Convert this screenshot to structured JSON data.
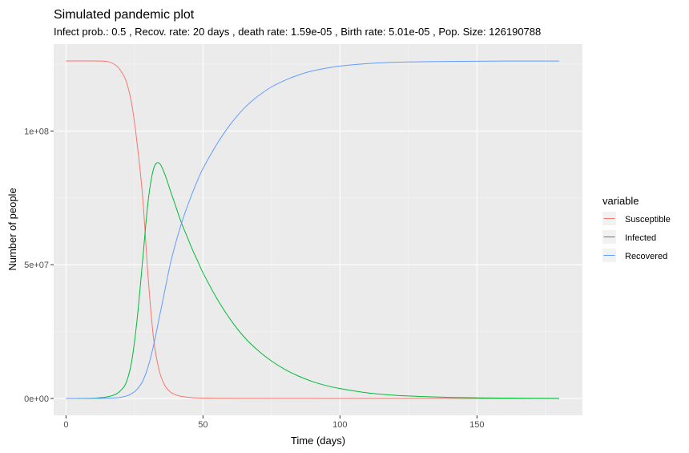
{
  "chart_data": {
    "type": "line",
    "title": "Simulated pandemic plot",
    "subtitle": "Infect prob.: 0.5 , Recov. rate: 20 days , death rate: 1.59e-05 , Birth rate: 5.01e-05 , Pop. Size: 126190788",
    "xlabel": "Time (days)",
    "ylabel": "Number of people",
    "xlim": [
      -4.5,
      188.5
    ],
    "ylim": [
      -6310000,
      132500000
    ],
    "x_ticks": [
      0,
      50,
      100,
      150
    ],
    "x_tick_labels": [
      "0",
      "50",
      "100",
      "150"
    ],
    "y_ticks": [
      0,
      50000000,
      100000000
    ],
    "y_tick_labels": [
      "0e+00",
      "5e+07",
      "1e+08"
    ],
    "grid": true,
    "legend": {
      "title": "variable",
      "position": "right"
    },
    "x": [
      0,
      5,
      10,
      15,
      18,
      20,
      22,
      24,
      26,
      28,
      30,
      32,
      34,
      36,
      38,
      40,
      42,
      44,
      46,
      48,
      50,
      55,
      60,
      65,
      70,
      75,
      80,
      85,
      90,
      95,
      100,
      110,
      120,
      130,
      140,
      150,
      160,
      170,
      180
    ],
    "series": [
      {
        "name": "Susceptible",
        "color": "#F8766D",
        "values": [
          126190788,
          126190000,
          126190000,
          126000000,
          124700000,
          122500000,
          118500000,
          110000000,
          95000000,
          75000000,
          45000000,
          22000000,
          10500000,
          5000000,
          2500000,
          1400000,
          800000,
          500000,
          300000,
          200000,
          150000,
          80000,
          50000,
          30000,
          20000,
          15000,
          10000,
          8000,
          6000,
          5000,
          4000,
          3000,
          2500,
          2000,
          1500,
          1200,
          1000,
          900,
          800
        ]
      },
      {
        "name": "Infected",
        "color": "#00BA38",
        "values": [
          0,
          10000,
          100000,
          600000,
          1500000,
          3000000,
          6000000,
          14000000,
          30000000,
          52000000,
          74000000,
          86000000,
          88000000,
          84000000,
          78000000,
          72000000,
          66000000,
          61000000,
          56000000,
          51500000,
          47000000,
          37500000,
          29500000,
          23000000,
          18000000,
          14000000,
          10800000,
          8300000,
          6300000,
          4800000,
          3700000,
          2100000,
          1200000,
          700000,
          400000,
          230000,
          130000,
          75000,
          40000
        ]
      },
      {
        "name": "Recovered",
        "color": "#619CFF",
        "values": [
          0,
          0,
          10000,
          60000,
          200000,
          450000,
          900000,
          1800000,
          3500000,
          6500000,
          12000000,
          20000000,
          30000000,
          40000000,
          50000000,
          58000000,
          65000000,
          71000000,
          76500000,
          81500000,
          86000000,
          95000000,
          102500000,
          108500000,
          113000000,
          116500000,
          119000000,
          121000000,
          122500000,
          123500000,
          124300000,
          125200000,
          125700000,
          125900000,
          126000000,
          126100000,
          126150000,
          126170000,
          126180000
        ]
      }
    ]
  }
}
